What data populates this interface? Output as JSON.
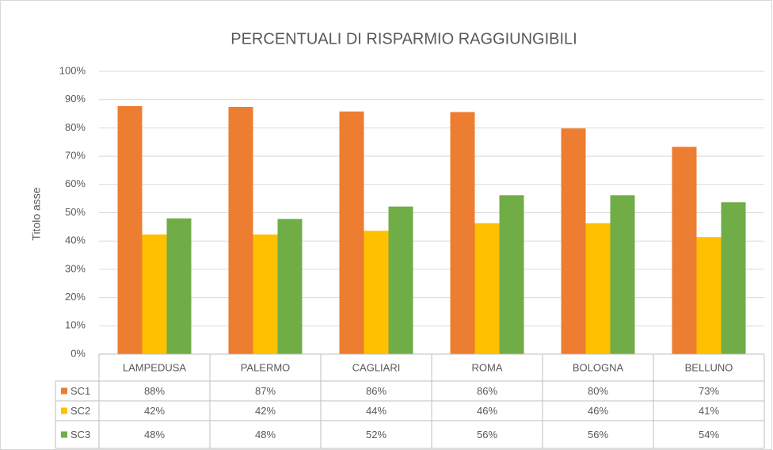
{
  "chart_data": {
    "type": "bar",
    "title": "PERCENTUALI DI RISPARMIO RAGGIUNGIBILI",
    "y_label": "Titolo asse",
    "categories": [
      "LAMPEDUSA",
      "PALERMO",
      "CAGLIARI",
      "ROMA",
      "BOLOGNA",
      "BELLUNO"
    ],
    "series": [
      {
        "name": "SC1",
        "color": "#ed7d31",
        "values": [
          87.7,
          87.4,
          85.8,
          85.6,
          79.8,
          73.3
        ],
        "value_labels": [
          "88%",
          "87%",
          "86%",
          "86%",
          "80%",
          "73%"
        ]
      },
      {
        "name": "SC2",
        "color": "#ffc000",
        "values": [
          42.3,
          42.3,
          43.6,
          46.3,
          46.3,
          41.4
        ],
        "value_labels": [
          "42%",
          "42%",
          "44%",
          "46%",
          "46%",
          "41%"
        ]
      },
      {
        "name": "SC3",
        "color": "#70ad47",
        "values": [
          48.0,
          47.8,
          52.2,
          56.2,
          56.2,
          53.7
        ],
        "value_labels": [
          "48%",
          "48%",
          "52%",
          "56%",
          "56%",
          "54%"
        ]
      }
    ],
    "ylim": [
      0,
      100
    ],
    "yticks": [
      {
        "value": 0,
        "label": "0%"
      },
      {
        "value": 10,
        "label": "10%"
      },
      {
        "value": 20,
        "label": "20%"
      },
      {
        "value": 30,
        "label": "30%"
      },
      {
        "value": 40,
        "label": "40%"
      },
      {
        "value": 50,
        "label": "50%"
      },
      {
        "value": 60,
        "label": "60%"
      },
      {
        "value": 70,
        "label": "70%"
      },
      {
        "value": 80,
        "label": "80%"
      },
      {
        "value": 90,
        "label": "90%"
      },
      {
        "value": 100,
        "label": "100%"
      }
    ],
    "grid": true
  }
}
